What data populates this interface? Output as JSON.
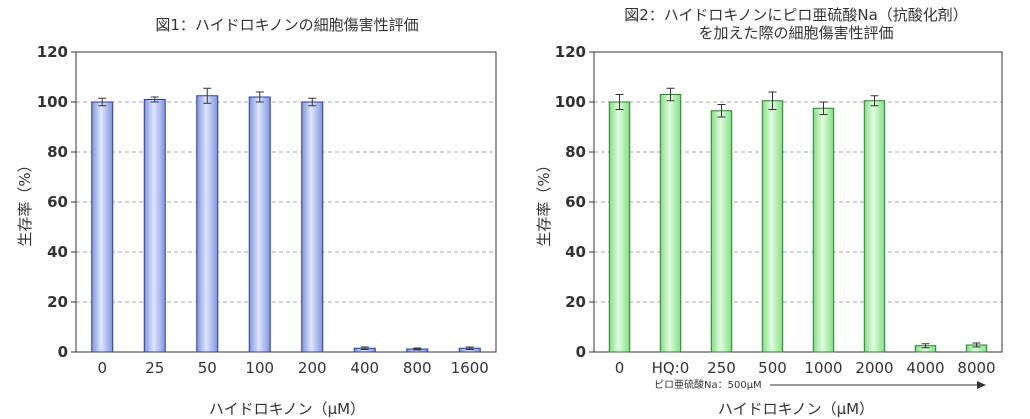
{
  "colors": {
    "chart1_bar": "#aab8ee",
    "chart1_bar_edge": "#2b3f8f",
    "chart2_bar": "#b8f0b8",
    "chart2_bar_edge": "#2e7d32",
    "grid": "#a8a8a8",
    "axis": "#333333"
  },
  "chart_data": [
    {
      "type": "bar",
      "title": "図1：ハイドロキノンの細胞傷害性評価",
      "xlabel": "ハイドロキノン（μM）",
      "ylabel": "生存率（%）",
      "ylim": [
        0,
        120
      ],
      "yticks": [
        "0",
        "20",
        "40",
        "60",
        "80",
        "100",
        "120"
      ],
      "grid": true,
      "categories": [
        "0",
        "25",
        "50",
        "100",
        "200",
        "400",
        "800",
        "1600"
      ],
      "values": [
        100,
        101,
        102.5,
        102,
        100,
        1.5,
        1.2,
        1.5
      ],
      "errors": [
        1.5,
        1,
        3,
        2,
        1.5,
        0.5,
        0.4,
        0.5
      ]
    },
    {
      "type": "bar",
      "title_lines": [
        "図2：ハイドロキノンにピロ亜硫酸Na（抗酸化剤）",
        "を加えた際の細胞傷害性評価"
      ],
      "xlabel": "ハイドロキノン（μM）",
      "ylabel": "生存率（%）",
      "ylim": [
        0,
        120
      ],
      "yticks": [
        "0",
        "20",
        "40",
        "60",
        "80",
        "100",
        "120"
      ],
      "grid": true,
      "categories": [
        "0",
        "HQ:0",
        "250",
        "500",
        "1000",
        "2000",
        "4000",
        "8000"
      ],
      "values": [
        100,
        103,
        96.5,
        100.5,
        97.5,
        100.5,
        2.5,
        2.8
      ],
      "errors": [
        3,
        2.5,
        2.5,
        3.5,
        2.5,
        2,
        0.8,
        0.8
      ],
      "annotation": "ピロ亜硫酸Na：500μM"
    }
  ]
}
